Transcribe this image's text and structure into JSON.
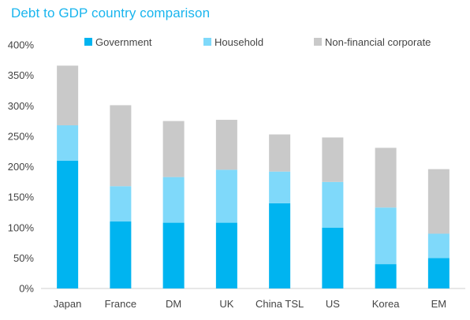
{
  "chart_data": {
    "type": "bar",
    "stacked": true,
    "title": "Debt to GDP country comparison",
    "categories": [
      "Japan",
      "France",
      "DM",
      "UK",
      "China TSL",
      "US",
      "Korea",
      "EM"
    ],
    "series": [
      {
        "name": "Government",
        "color": "#00b4f0",
        "values": [
          210,
          110,
          108,
          108,
          140,
          100,
          40,
          50
        ]
      },
      {
        "name": "Household",
        "color": "#7fd9fa",
        "values": [
          58,
          58,
          75,
          87,
          52,
          75,
          93,
          40
        ]
      },
      {
        "name": "Non-financial corporate",
        "color": "#c9c9c9",
        "values": [
          98,
          133,
          92,
          82,
          61,
          73,
          98,
          106
        ]
      }
    ],
    "ylim": [
      0,
      400
    ],
    "yticks": [
      "0%",
      "50%",
      "100%",
      "150%",
      "200%",
      "250%",
      "300%",
      "350%",
      "400%"
    ],
    "ytick_values": [
      0,
      50,
      100,
      150,
      200,
      250,
      300,
      350,
      400
    ],
    "xlabel": "",
    "ylabel": "",
    "legend_position": "top",
    "grid": false
  }
}
